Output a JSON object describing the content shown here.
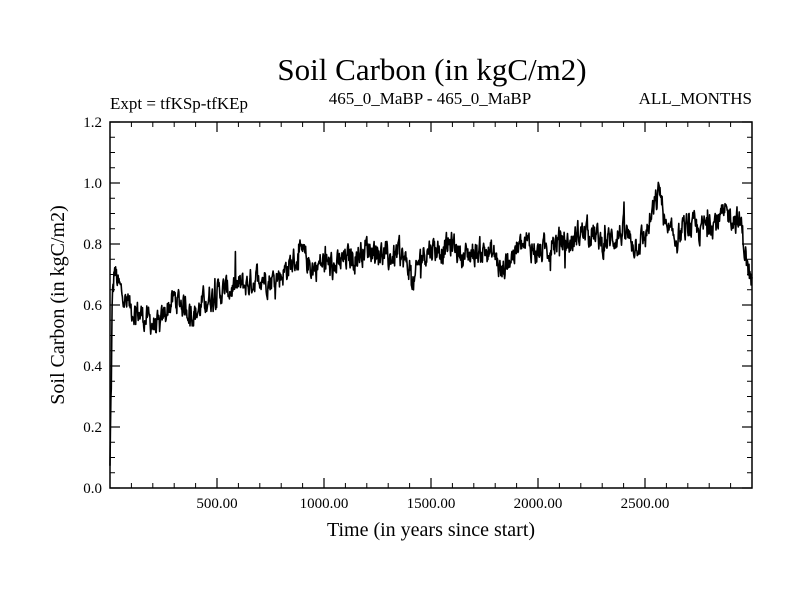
{
  "chart_data": {
    "type": "line",
    "title": "Soil Carbon (in kgC/m2)",
    "subtitle_left": "Expt = tfKSp-tfKEp",
    "subtitle_center": "465_0_MaBP - 465_0_MaBP",
    "subtitle_right": "ALL_MONTHS",
    "xlabel": "Time (in years since start)",
    "ylabel": "Soil Carbon (in kgC/m2)",
    "xlim": [
      0,
      3000
    ],
    "ylim": [
      0.0,
      1.2
    ],
    "x_ticks": [
      500,
      1000,
      1500,
      2000,
      2500
    ],
    "x_tick_labels": [
      "500.00",
      "1000.00",
      "1500.00",
      "2000.00",
      "2500.00"
    ],
    "y_ticks": [
      0.0,
      0.2,
      0.4,
      0.6,
      0.8,
      1.0,
      1.2
    ],
    "y_tick_labels": [
      "0.0",
      "0.2",
      "0.4",
      "0.6",
      "0.8",
      "1.0",
      "1.2"
    ],
    "grid": false,
    "series": [
      {
        "name": "Soil Carbon",
        "color": "#000000",
        "noise_amplitude": 0.07,
        "x": [
          0,
          10,
          20,
          40,
          80,
          120,
          160,
          200,
          230,
          260,
          300,
          350,
          400,
          450,
          500,
          550,
          600,
          650,
          700,
          750,
          800,
          850,
          900,
          950,
          1000,
          1050,
          1100,
          1150,
          1200,
          1250,
          1300,
          1350,
          1400,
          1420,
          1450,
          1500,
          1550,
          1600,
          1650,
          1700,
          1750,
          1800,
          1830,
          1850,
          1900,
          1950,
          2000,
          2050,
          2100,
          2150,
          2200,
          2250,
          2300,
          2350,
          2400,
          2450,
          2500,
          2550,
          2570,
          2600,
          2650,
          2700,
          2750,
          2800,
          2850,
          2900,
          2950,
          2980,
          3000
        ],
        "y": [
          0.05,
          0.55,
          0.72,
          0.66,
          0.6,
          0.58,
          0.56,
          0.54,
          0.52,
          0.58,
          0.62,
          0.6,
          0.57,
          0.62,
          0.64,
          0.65,
          0.66,
          0.67,
          0.7,
          0.68,
          0.7,
          0.74,
          0.76,
          0.72,
          0.74,
          0.72,
          0.75,
          0.76,
          0.79,
          0.78,
          0.75,
          0.77,
          0.72,
          0.66,
          0.76,
          0.79,
          0.78,
          0.8,
          0.76,
          0.77,
          0.78,
          0.76,
          0.7,
          0.74,
          0.78,
          0.8,
          0.77,
          0.79,
          0.81,
          0.8,
          0.84,
          0.84,
          0.8,
          0.82,
          0.84,
          0.8,
          0.82,
          0.93,
          0.98,
          0.83,
          0.82,
          0.86,
          0.84,
          0.87,
          0.88,
          0.9,
          0.86,
          0.72,
          0.66
        ]
      }
    ]
  }
}
